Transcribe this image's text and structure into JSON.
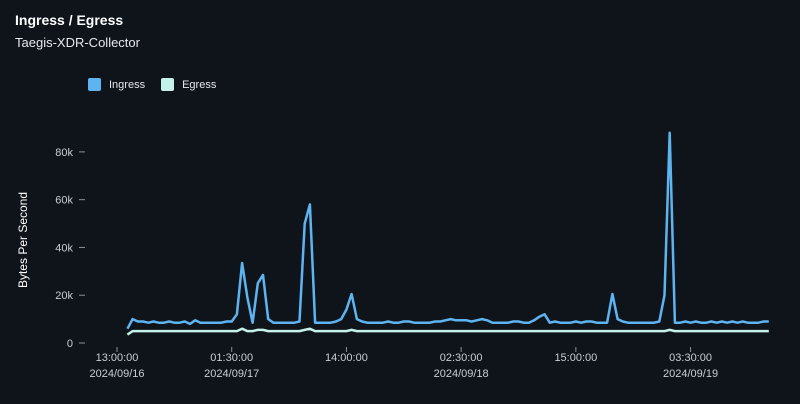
{
  "header": {
    "title": "Ingress / Egress",
    "subtitle": "Taegis-XDR-Collector"
  },
  "chart_data": {
    "type": "line",
    "title": "Ingress / Egress",
    "subtitle": "Taegis-XDR-Collector",
    "ylabel": "Bytes Per Second",
    "xlabel": "",
    "ylim": [
      0,
      90000
    ],
    "legend_position": "top-left",
    "grid": false,
    "y_ticks": [
      {
        "value": 0,
        "label": "0"
      },
      {
        "value": 20000,
        "label": "20k"
      },
      {
        "value": 40000,
        "label": "40k"
      },
      {
        "value": 60000,
        "label": "60k"
      },
      {
        "value": 80000,
        "label": "80k"
      }
    ],
    "x_ticks": [
      {
        "index": 0,
        "label": "13:00:00",
        "sublabel": "2024/09/16"
      },
      {
        "index": 22,
        "label": "01:30:00",
        "sublabel": "2024/09/17"
      },
      {
        "index": 44,
        "label": "14:00:00",
        "sublabel": ""
      },
      {
        "index": 66,
        "label": "02:30:00",
        "sublabel": "2024/09/18"
      },
      {
        "index": 88,
        "label": "15:00:00",
        "sublabel": ""
      },
      {
        "index": 110,
        "label": "03:30:00",
        "sublabel": "2024/09/19"
      }
    ],
    "x_domain": [
      0,
      126
    ],
    "series": [
      {
        "name": "Ingress",
        "color": "#5eb4f0",
        "x": [
          2,
          3,
          4,
          5,
          6,
          7,
          8,
          9,
          10,
          11,
          12,
          13,
          14,
          15,
          16,
          17,
          18,
          19,
          20,
          21,
          22,
          23,
          24,
          25,
          26,
          27,
          28,
          29,
          30,
          31,
          32,
          33,
          34,
          35,
          36,
          37,
          38,
          39,
          40,
          41,
          42,
          43,
          44,
          45,
          46,
          47,
          48,
          49,
          50,
          51,
          52,
          53,
          54,
          55,
          56,
          57,
          58,
          59,
          60,
          61,
          62,
          63,
          64,
          65,
          66,
          67,
          68,
          69,
          70,
          71,
          72,
          73,
          74,
          75,
          76,
          77,
          78,
          79,
          80,
          81,
          82,
          83,
          84,
          85,
          86,
          87,
          88,
          89,
          90,
          91,
          92,
          93,
          94,
          95,
          96,
          97,
          98,
          99,
          100,
          101,
          102,
          103,
          104,
          105,
          106,
          107,
          108,
          109,
          110,
          111,
          112,
          113,
          114,
          115,
          116,
          117,
          118,
          119,
          120,
          121,
          122,
          123,
          124,
          125
        ],
        "values": [
          6000,
          10000,
          9000,
          9000,
          8500,
          9000,
          8500,
          8500,
          9000,
          8500,
          8500,
          9000,
          8000,
          9500,
          8500,
          8500,
          8500,
          8500,
          8500,
          9000,
          9000,
          12000,
          33500,
          19000,
          8500,
          25000,
          28500,
          10000,
          8500,
          8500,
          8500,
          8500,
          8500,
          9000,
          50000,
          58000,
          8500,
          8500,
          8500,
          8500,
          9000,
          10000,
          14000,
          20500,
          10000,
          9000,
          8500,
          8500,
          8500,
          8500,
          9000,
          8500,
          8500,
          9000,
          9000,
          8500,
          8500,
          8500,
          8500,
          9000,
          9000,
          9500,
          10000,
          9500,
          9500,
          9500,
          9000,
          9500,
          10000,
          9500,
          8500,
          8500,
          8500,
          8500,
          9000,
          9000,
          8500,
          8500,
          9500,
          11000,
          12000,
          8500,
          9000,
          8500,
          8500,
          8500,
          9000,
          8500,
          9000,
          9000,
          8500,
          8500,
          8500,
          20500,
          10000,
          9000,
          8500,
          8500,
          8500,
          8500,
          8500,
          8500,
          9000,
          20000,
          88000,
          8500,
          8500,
          9000,
          8500,
          9000,
          8500,
          8500,
          9000,
          8500,
          9000,
          8500,
          9000,
          8500,
          9000,
          8500,
          8500,
          8500,
          9000,
          9000
        ]
      },
      {
        "name": "Egress",
        "color": "#c4f2ea",
        "x": [
          2,
          3,
          4,
          5,
          6,
          7,
          8,
          9,
          10,
          11,
          12,
          13,
          14,
          15,
          16,
          17,
          18,
          19,
          20,
          21,
          22,
          23,
          24,
          25,
          26,
          27,
          28,
          29,
          30,
          31,
          32,
          33,
          34,
          35,
          36,
          37,
          38,
          39,
          40,
          41,
          42,
          43,
          44,
          45,
          46,
          47,
          48,
          49,
          50,
          51,
          52,
          53,
          54,
          55,
          56,
          57,
          58,
          59,
          60,
          61,
          62,
          63,
          64,
          65,
          66,
          67,
          68,
          69,
          70,
          71,
          72,
          73,
          74,
          75,
          76,
          77,
          78,
          79,
          80,
          81,
          82,
          83,
          84,
          85,
          86,
          87,
          88,
          89,
          90,
          91,
          92,
          93,
          94,
          95,
          96,
          97,
          98,
          99,
          100,
          101,
          102,
          103,
          104,
          105,
          106,
          107,
          108,
          109,
          110,
          111,
          112,
          113,
          114,
          115,
          116,
          117,
          118,
          119,
          120,
          121,
          122,
          123,
          124,
          125
        ],
        "values": [
          3500,
          5000,
          5000,
          5000,
          5000,
          5000,
          5000,
          5000,
          5000,
          5000,
          5000,
          5000,
          5000,
          5000,
          5000,
          5000,
          5000,
          5000,
          5000,
          5000,
          5000,
          5000,
          6000,
          5000,
          5000,
          5500,
          5500,
          5000,
          5000,
          5000,
          5000,
          5000,
          5000,
          5000,
          5500,
          6000,
          5000,
          5000,
          5000,
          5000,
          5000,
          5000,
          5000,
          5500,
          5000,
          5000,
          5000,
          5000,
          5000,
          5000,
          5000,
          5000,
          5000,
          5000,
          5000,
          5000,
          5000,
          5000,
          5000,
          5000,
          5000,
          5000,
          5000,
          5000,
          5000,
          5000,
          5000,
          5000,
          5000,
          5000,
          5000,
          5000,
          5000,
          5000,
          5000,
          5000,
          5000,
          5000,
          5000,
          5000,
          5000,
          5000,
          5000,
          5000,
          5000,
          5000,
          5000,
          5000,
          5000,
          5000,
          5000,
          5000,
          5000,
          5000,
          5000,
          5000,
          5000,
          5000,
          5000,
          5000,
          5000,
          5000,
          5000,
          5000,
          5500,
          5000,
          5000,
          5000,
          5000,
          5000,
          5000,
          5000,
          5000,
          5000,
          5000,
          5000,
          5000,
          5000,
          5000,
          5000,
          5000,
          5000,
          5000,
          5000
        ]
      }
    ]
  }
}
